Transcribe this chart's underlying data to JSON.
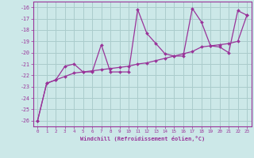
{
  "xlabel": "Windchill (Refroidissement éolien,°C)",
  "x_data": [
    0,
    1,
    2,
    3,
    4,
    5,
    6,
    7,
    8,
    9,
    10,
    11,
    12,
    13,
    14,
    15,
    16,
    17,
    18,
    19,
    20,
    21,
    22,
    23
  ],
  "y_jagged": [
    -26.0,
    -22.7,
    -22.4,
    -21.2,
    -21.0,
    -21.7,
    -21.7,
    -19.3,
    -21.7,
    -21.7,
    -21.7,
    -16.2,
    -18.3,
    -19.2,
    -20.1,
    -20.3,
    -20.3,
    -16.1,
    -17.3,
    -19.4,
    -19.5,
    -20.0,
    -16.3,
    -16.7
  ],
  "y_trend": [
    -26.0,
    -22.7,
    -22.4,
    -22.1,
    -21.8,
    -21.7,
    -21.6,
    -21.5,
    -21.4,
    -21.3,
    -21.2,
    -21.0,
    -20.9,
    -20.7,
    -20.5,
    -20.3,
    -20.1,
    -19.9,
    -19.5,
    -19.4,
    -19.3,
    -19.2,
    -19.0,
    -16.7
  ],
  "line_color": "#993399",
  "bg_color": "#cce8e8",
  "grid_color": "#aacccc",
  "xlim_min": -0.5,
  "xlim_max": 23.5,
  "ylim_min": -26.5,
  "ylim_max": -15.5,
  "yticks": [
    -26,
    -25,
    -24,
    -23,
    -22,
    -21,
    -20,
    -19,
    -18,
    -17,
    -16
  ],
  "xticks": [
    0,
    1,
    2,
    3,
    4,
    5,
    6,
    7,
    8,
    9,
    10,
    11,
    12,
    13,
    14,
    15,
    16,
    17,
    18,
    19,
    20,
    21,
    22,
    23
  ]
}
